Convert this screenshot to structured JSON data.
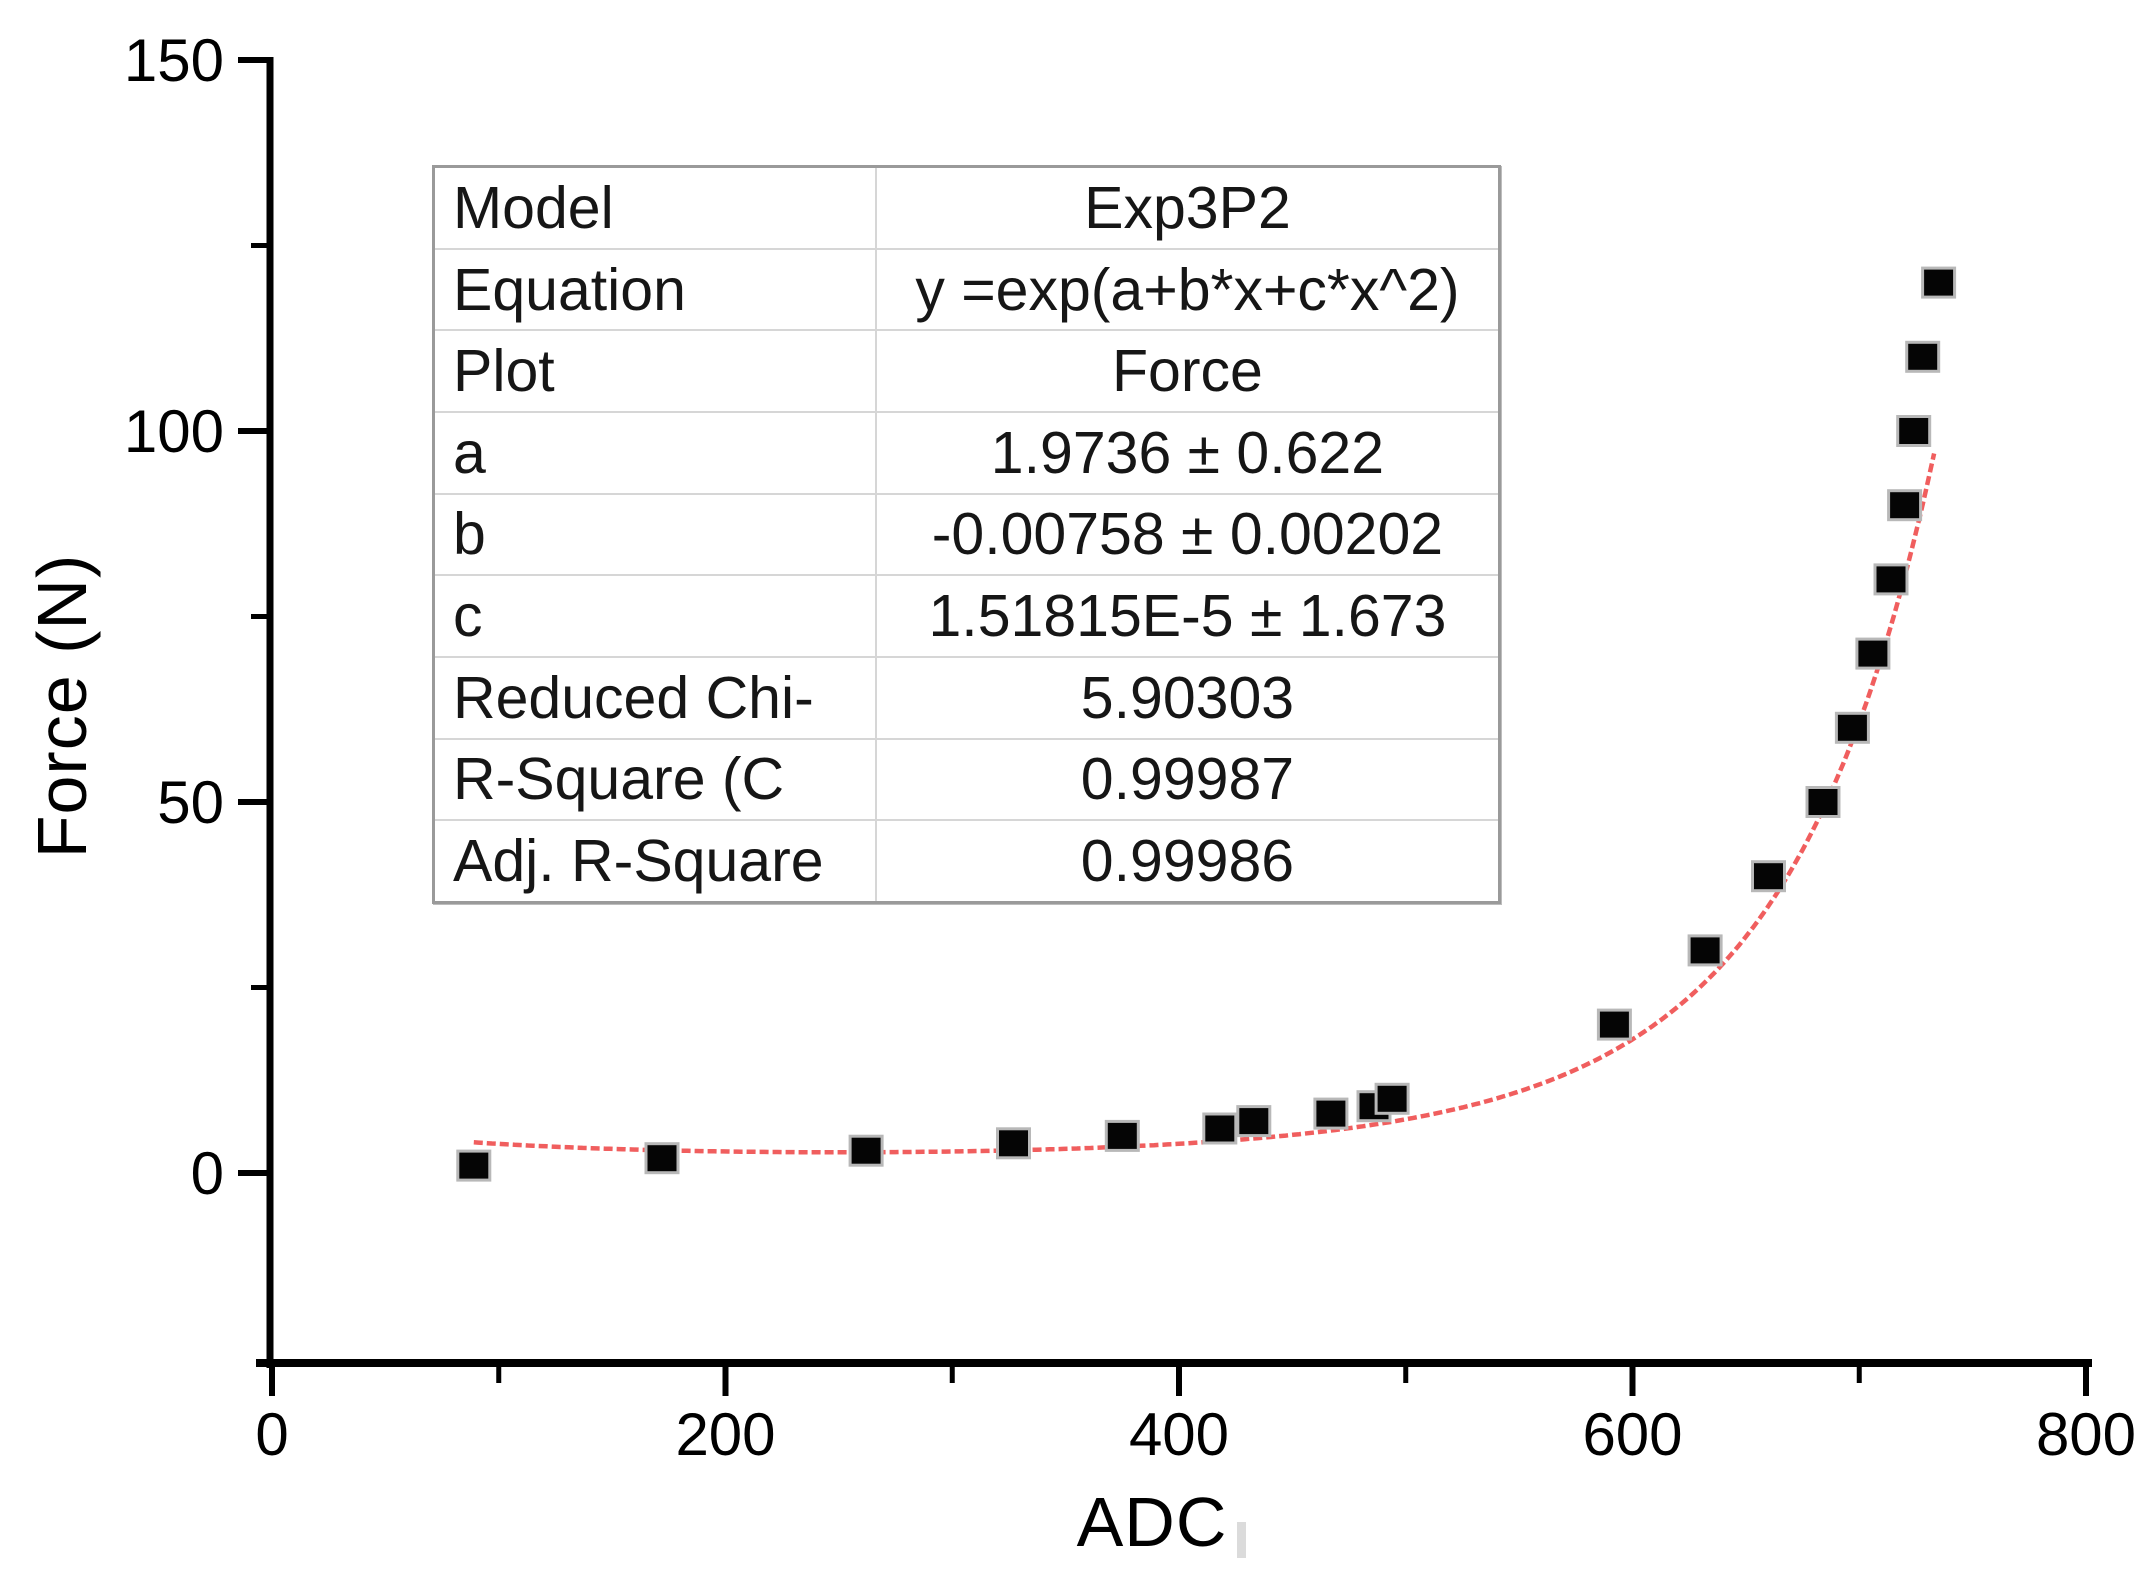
{
  "chart_data": {
    "type": "scatter",
    "title": "",
    "xlabel": "ADC",
    "ylabel": "Force (N)",
    "xlim": [
      0,
      800
    ],
    "ylim": [
      0,
      150
    ],
    "grid": false,
    "x_major_ticks": [
      0,
      200,
      400,
      600,
      800
    ],
    "x_minor_ticks": [
      100,
      300,
      500,
      700
    ],
    "y_major_ticks": [
      0,
      50,
      100,
      150
    ],
    "y_minor_ticks": [
      25,
      75,
      125
    ],
    "series": [
      {
        "name": "Force",
        "type": "scatter",
        "marker": "square",
        "color": "#050505",
        "points": [
          [
            89,
            1
          ],
          [
            172,
            2
          ],
          [
            262,
            3
          ],
          [
            327,
            4
          ],
          [
            375,
            5
          ],
          [
            418,
            6
          ],
          [
            433,
            7
          ],
          [
            467,
            8
          ],
          [
            486,
            9
          ],
          [
            494,
            10
          ],
          [
            592,
            20
          ],
          [
            632,
            30
          ],
          [
            660,
            40
          ],
          [
            684,
            50
          ],
          [
            697,
            60
          ],
          [
            706,
            70
          ],
          [
            714,
            80
          ],
          [
            720,
            90
          ],
          [
            724,
            100
          ],
          [
            728,
            110
          ],
          [
            735,
            120
          ]
        ]
      },
      {
        "name": "Exp3P2 fit",
        "type": "line",
        "color": "#ef5050",
        "fit": {
          "a": 1.9736,
          "b": -0.00758,
          "c": 1.51815e-05,
          "x_start": 89,
          "x_end": 734
        }
      }
    ]
  },
  "fit_table": {
    "rows": [
      {
        "label": "Model",
        "value": "Exp3P2"
      },
      {
        "label": "Equation",
        "value": "y =exp(a+b*x+c*x^2)"
      },
      {
        "label": "Plot",
        "value": "Force"
      },
      {
        "label": "a",
        "value": "1.9736 ± 0.622"
      },
      {
        "label": "b",
        "value": "-0.00758 ± 0.00202"
      },
      {
        "label": "c",
        "value": "1.51815E-5 ± 1.673"
      },
      {
        "label": "Reduced Chi-",
        "value": "5.90303"
      },
      {
        "label": "R-Square (C",
        "value": "0.99987"
      },
      {
        "label": "Adj. R-Square",
        "value": "0.99986"
      }
    ]
  },
  "colors": {
    "axis": "#000000",
    "tick_label": "#000000",
    "marker_fill": "#050505",
    "marker_halo": "#b8b8b8",
    "fit_line": "#ef5050",
    "table_outer_border": "#9a9a9a",
    "table_grid": "#d6d6d6",
    "background": "#ffffff"
  }
}
